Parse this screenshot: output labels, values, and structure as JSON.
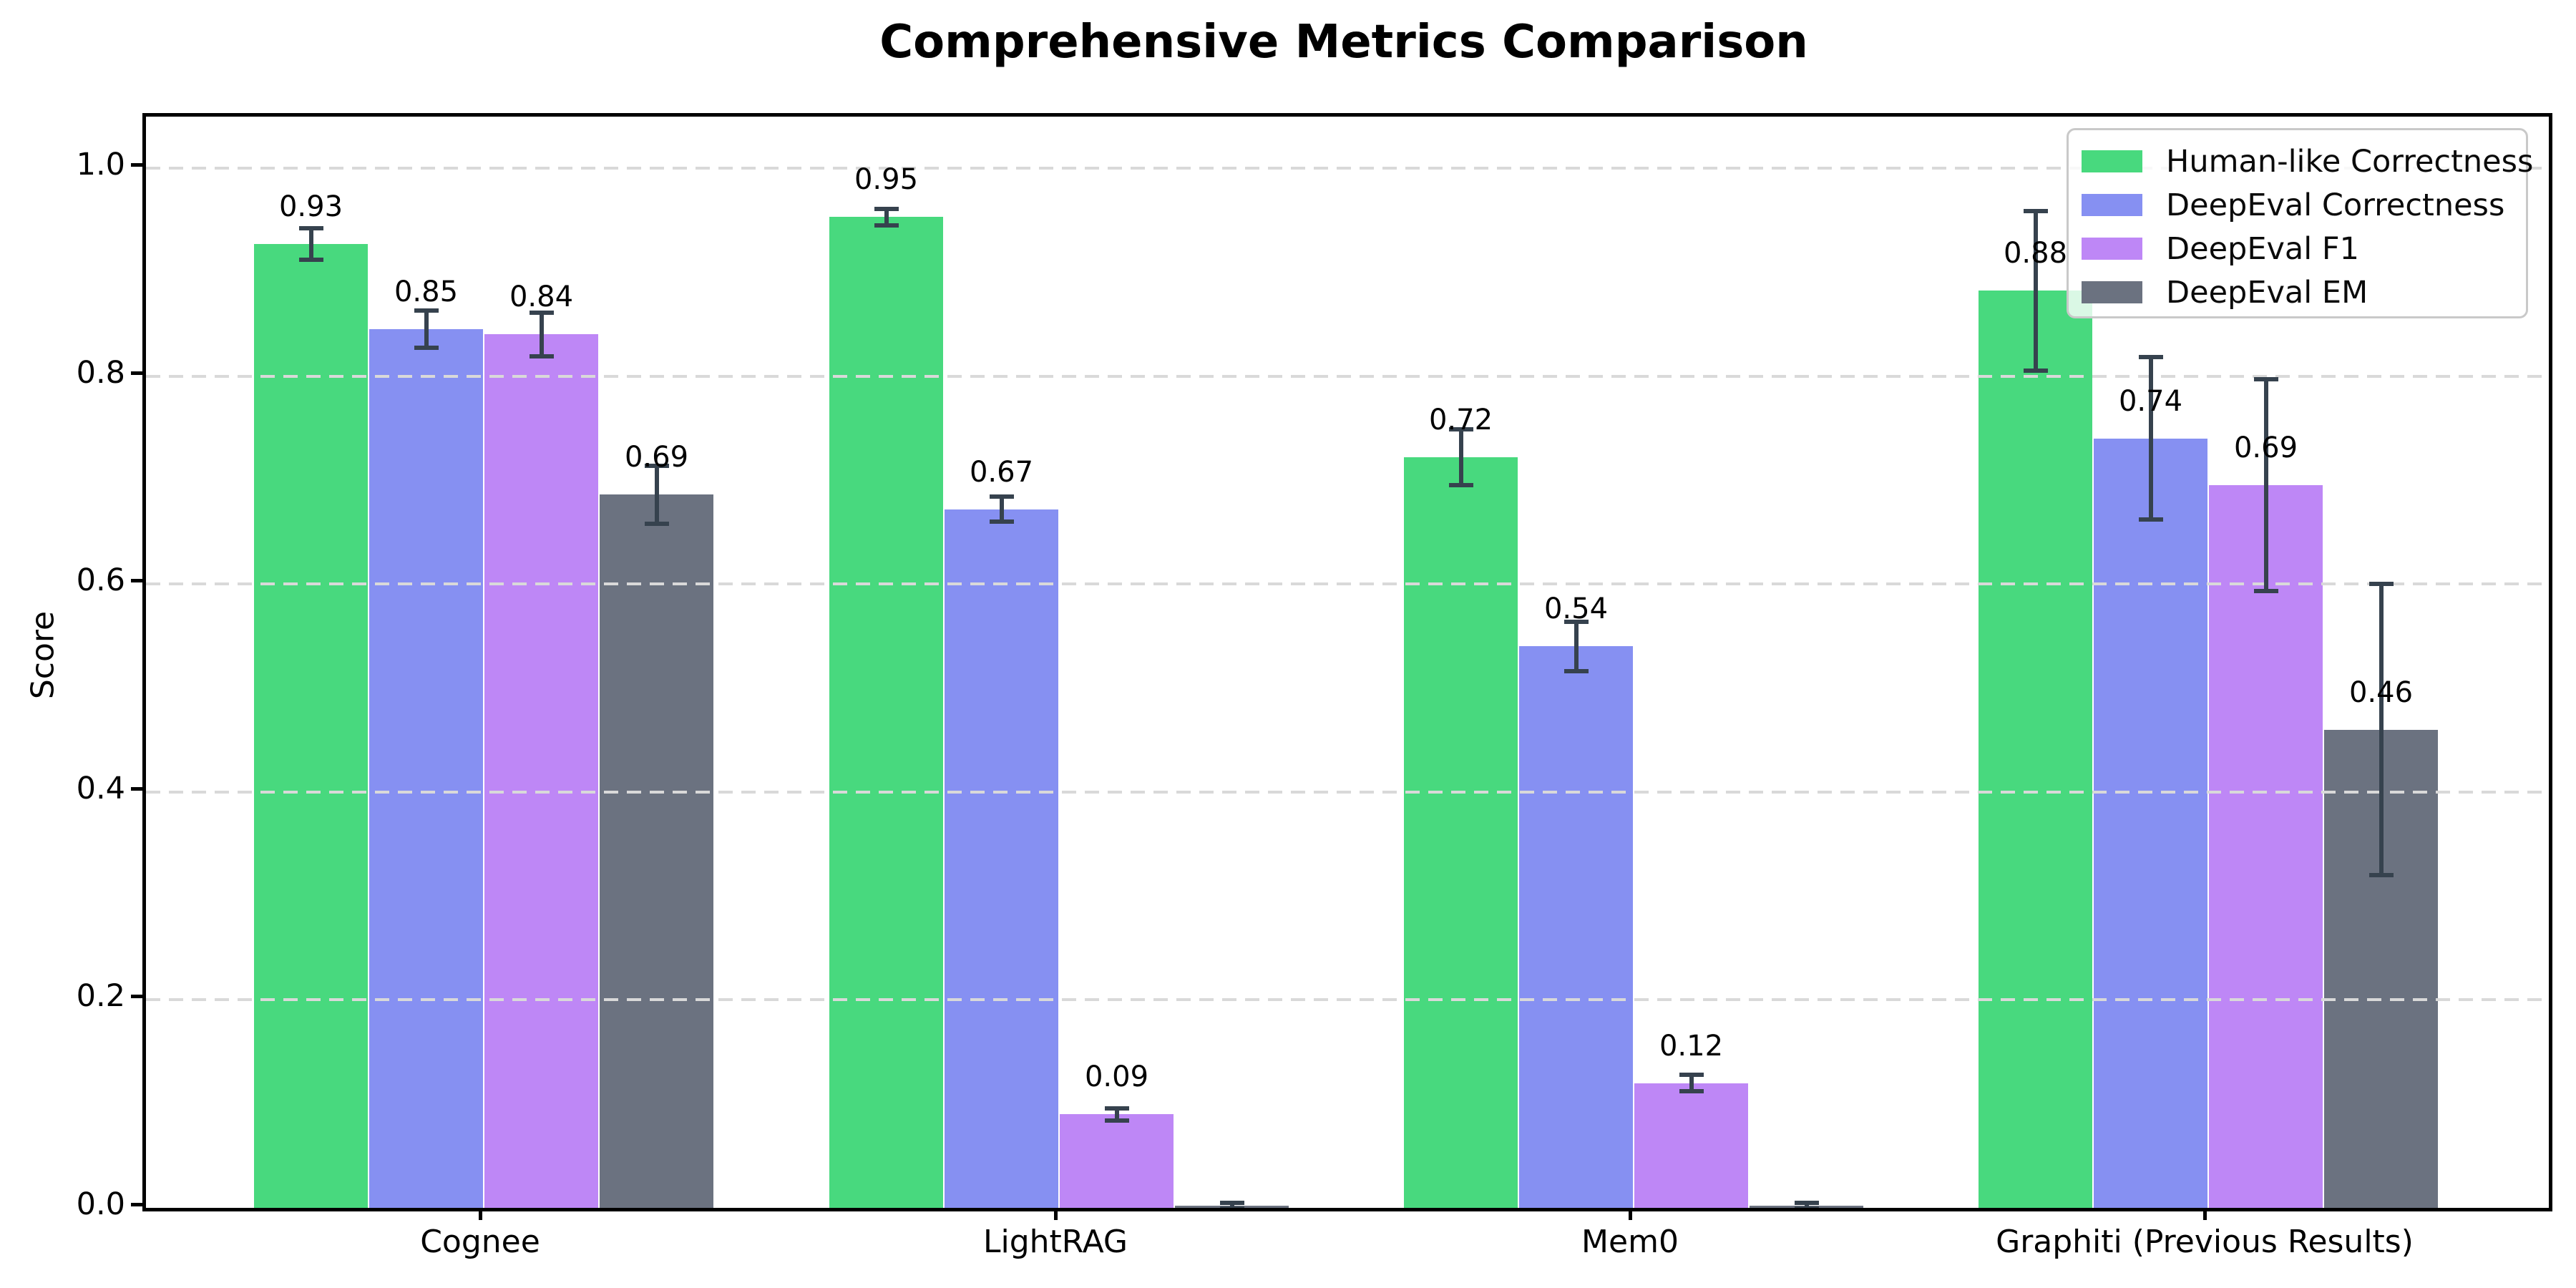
{
  "chart_data": {
    "type": "bar",
    "title": "Comprehensive Metrics Comparison",
    "ylabel": "Score",
    "xlabel": "",
    "categories": [
      "Cognee",
      "LightRAG",
      "Mem0",
      "Graphiti (Previous Results)"
    ],
    "series": [
      {
        "name": "Human-like Correctness",
        "color": "#48d97e",
        "values": [
          0.927,
          0.953,
          0.722,
          0.882
        ],
        "errors": [
          0.015,
          0.008,
          0.027,
          0.077
        ],
        "labels": [
          "0.93",
          "0.95",
          "0.72",
          "0.88"
        ]
      },
      {
        "name": "DeepEval Correctness",
        "color": "#8690f2",
        "values": [
          0.845,
          0.672,
          0.54,
          0.74
        ],
        "errors": [
          0.018,
          0.012,
          0.024,
          0.078
        ],
        "labels": [
          "0.85",
          "0.67",
          "0.54",
          "0.74"
        ]
      },
      {
        "name": "DeepEval F1",
        "color": "#be87f6",
        "values": [
          0.84,
          0.09,
          0.12,
          0.695
        ],
        "errors": [
          0.021,
          0.006,
          0.008,
          0.102
        ],
        "labels": [
          "0.84",
          "0.09",
          "0.12",
          "0.69"
        ]
      },
      {
        "name": "DeepEval EM",
        "color": "#6b7280",
        "values": [
          0.686,
          0.002,
          0.002,
          0.46
        ],
        "errors": [
          0.028,
          0.003,
          0.003,
          0.14
        ],
        "labels": [
          "0.69",
          null,
          null,
          "0.46"
        ]
      }
    ],
    "yticks": [
      "0.0",
      "0.2",
      "0.4",
      "0.6",
      "0.8",
      "1.0"
    ],
    "ylim": [
      0,
      1.05
    ],
    "grid": "dashed horizontal",
    "grid_color": "#d9d9d9",
    "legend_position": "upper right",
    "error_bar_color": "#36424e",
    "background": "#ffffff"
  }
}
